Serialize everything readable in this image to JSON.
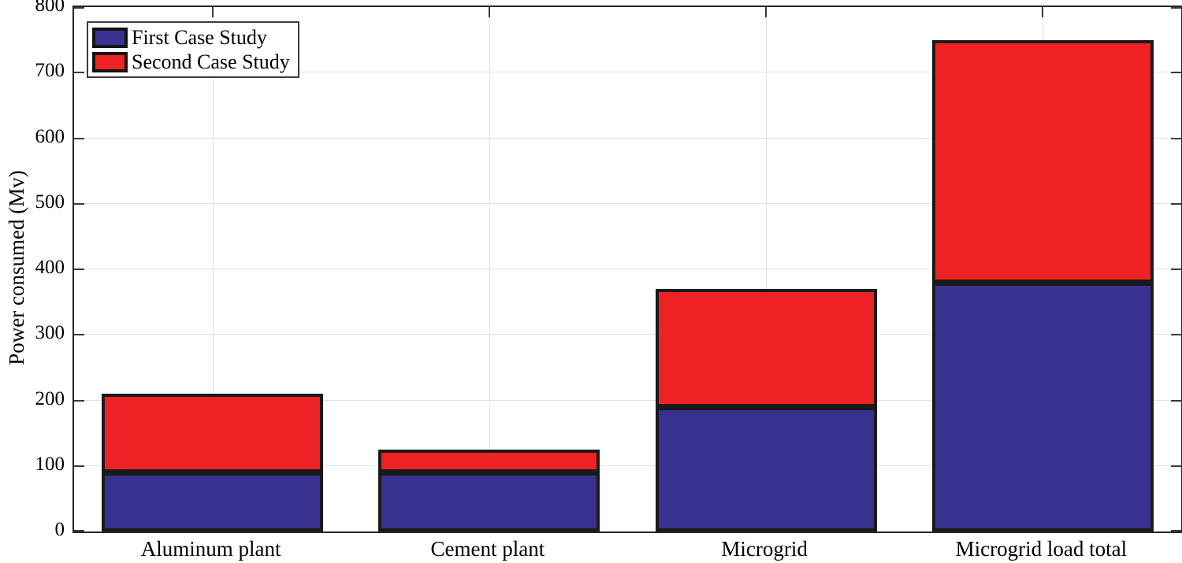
{
  "chart_data": {
    "type": "bar",
    "stacked": true,
    "title": "",
    "xlabel": "",
    "ylabel": "Power consumed (Mv)",
    "categories": [
      "Aluminum plant",
      "Cement plant",
      "Microgrid",
      "Microgrid load total"
    ],
    "series": [
      {
        "name": "First Case Study",
        "color": "#39318F",
        "values": [
          90,
          90,
          190,
          380
        ]
      },
      {
        "name": "Second Case Study",
        "color": "#EE2224",
        "values": [
          120,
          35,
          180,
          370
        ]
      }
    ],
    "ylim": [
      0,
      800
    ],
    "ytick_step": 100,
    "ytick_labels": [
      "0",
      "100",
      "200",
      "300",
      "400",
      "500",
      "600",
      "700",
      "800"
    ],
    "grid": true,
    "grid_color": "#E2E2E2",
    "axis_color": "#262626",
    "bar_edge_color": "#1A1A1A",
    "bar_width_fraction": 0.8,
    "legend_position": "top-left"
  }
}
